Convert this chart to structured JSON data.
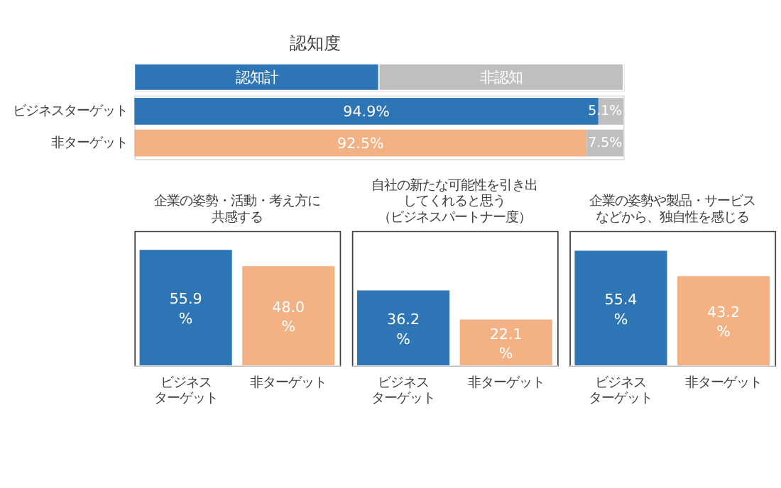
{
  "chart_data": [
    {
      "type": "bar",
      "title": "認知度",
      "orientation": "horizontal",
      "stacked": true,
      "categories": [
        "ビジネスターゲット",
        "非ターゲット"
      ],
      "xlim": [
        0,
        100
      ],
      "legend": "top",
      "tick_labels": "y",
      "series": [
        {
          "name": "認知計",
          "color": "#2e75b6",
          "colors": [
            "#2e75b6",
            "#f4b183"
          ],
          "values": [
            94.9,
            92.5
          ],
          "value_labels": [
            "94.9%",
            "92.5%"
          ]
        },
        {
          "name": "非認知",
          "color": "#bfbfbf",
          "values": [
            5.1,
            7.5
          ],
          "value_labels": [
            "5.1%",
            "7.5%"
          ]
        }
      ]
    },
    {
      "type": "bar",
      "title": "企業の姿勢・活動・考え方に共感する",
      "categories": [
        "ビジネスターゲット",
        "非ターゲット"
      ],
      "values": [
        55.9,
        48.0
      ],
      "colors": [
        "#2e75b6",
        "#f4b183"
      ],
      "value_labels": [
        "55.9%",
        "48.0%"
      ],
      "ylim": [
        0,
        65
      ],
      "tick_labels": "x"
    },
    {
      "type": "bar",
      "title": "自社の新たな可能性を引き出してくれると思う（ビジネスパートナー度）",
      "categories": [
        "ビジネスターゲット",
        "非ターゲット"
      ],
      "values": [
        36.2,
        22.1
      ],
      "colors": [
        "#2e75b6",
        "#f4b183"
      ],
      "value_labels": [
        "36.2%",
        "22.1%"
      ],
      "ylim": [
        0,
        65
      ],
      "tick_labels": "x"
    },
    {
      "type": "bar",
      "title": "企業の姿勢や製品・サービスなどから、独自性を感じる",
      "categories": [
        "ビジネスターゲット",
        "非ターゲット"
      ],
      "values": [
        55.4,
        43.2
      ],
      "colors": [
        "#2e75b6",
        "#f4b183"
      ],
      "value_labels": [
        "55.4%",
        "43.2%"
      ],
      "ylim": [
        0,
        65
      ],
      "tick_labels": "x"
    }
  ]
}
